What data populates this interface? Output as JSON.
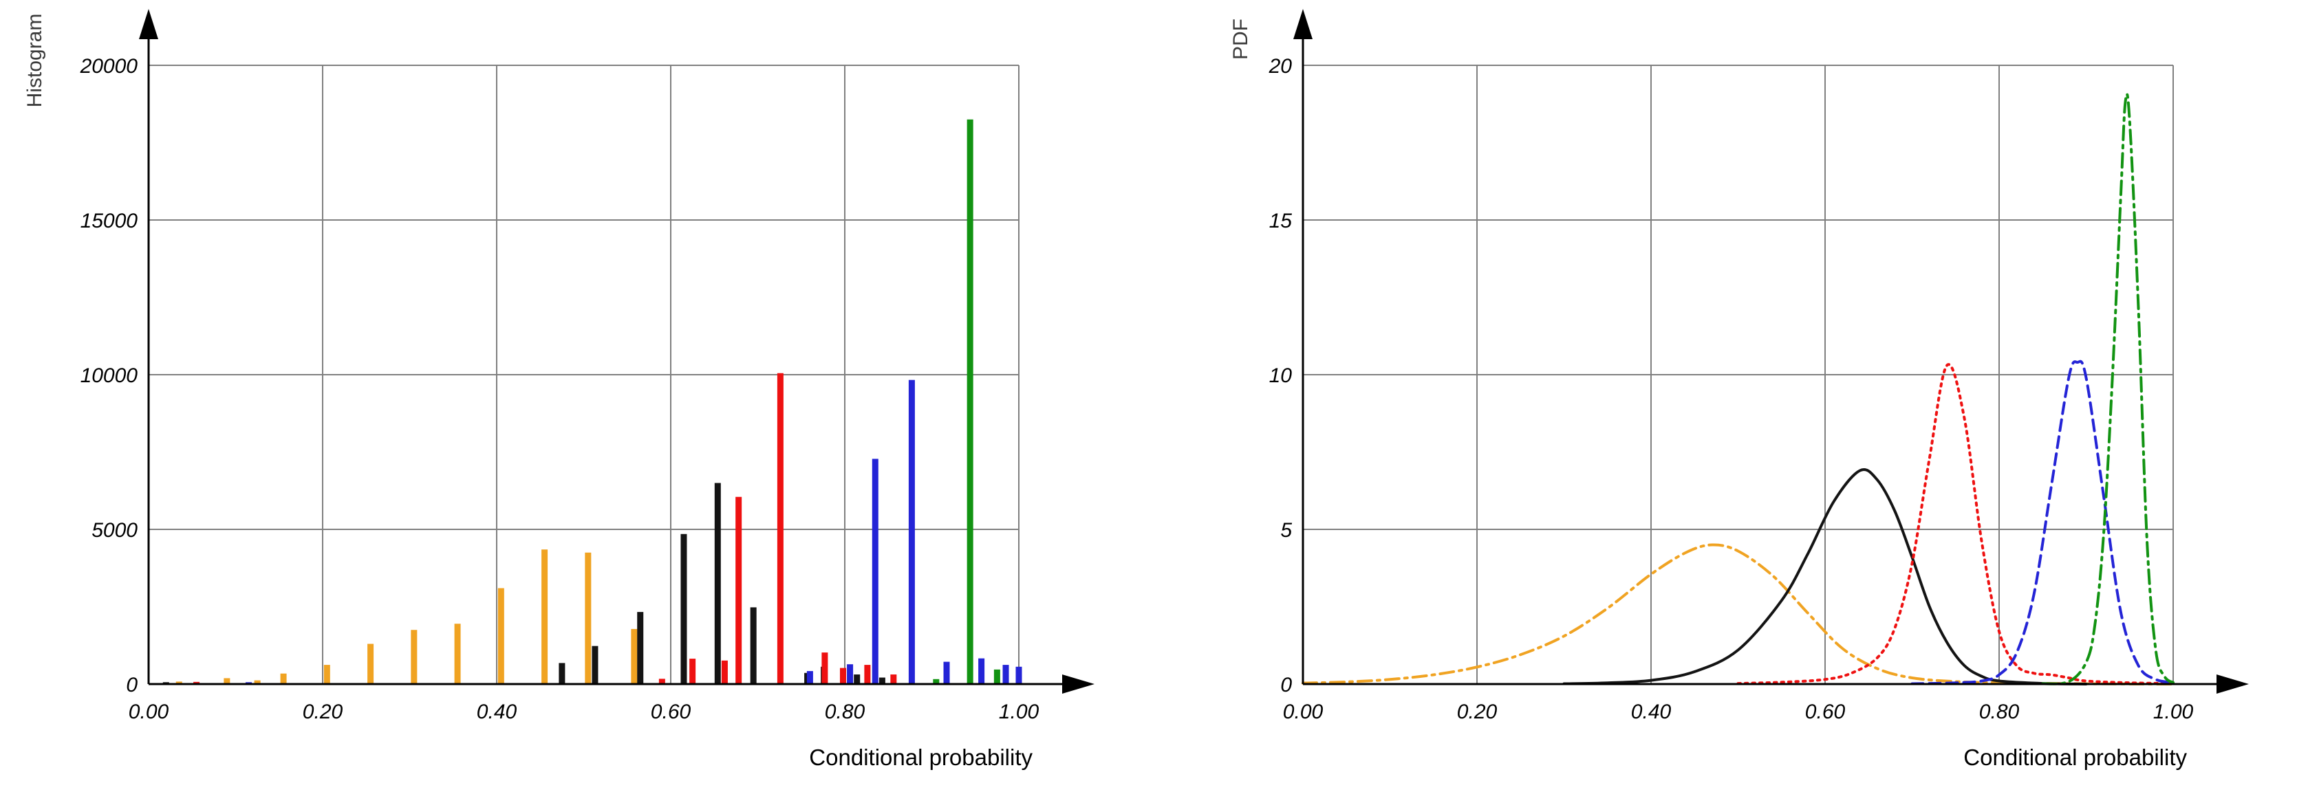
{
  "page": {
    "background": "#ffffff"
  },
  "colors": {
    "grid": "#7f7f7f",
    "axis": "#000000",
    "orange": "#F0A322",
    "black": "#141414",
    "red": "#EE1111",
    "blue": "#2424D6",
    "green": "#129312"
  },
  "chart_data": [
    {
      "id": "histogram",
      "type": "bar",
      "title": "",
      "xlabel": "Conditional probability",
      "ylabel": "Histogram",
      "xlim": [
        0,
        1
      ],
      "ylim": [
        0,
        20000
      ],
      "grid": true,
      "x_ticks": {
        "values": [
          0,
          0.2,
          0.4,
          0.6,
          0.8,
          1.0
        ],
        "labels": [
          "0.00",
          "0.20",
          "0.40",
          "0.60",
          "0.80",
          "1.00"
        ]
      },
      "y_ticks": {
        "values": [
          0,
          5000,
          10000,
          15000,
          20000
        ],
        "labels": [
          "0",
          "5000",
          "10000",
          "15000",
          "20000"
        ]
      },
      "series": [
        {
          "name": "orange",
          "color": "#F0A322",
          "bars": [
            [
              0.035,
              80
            ],
            [
              0.09,
              190
            ],
            [
              0.125,
              120
            ],
            [
              0.155,
              340
            ],
            [
              0.205,
              620
            ],
            [
              0.255,
              1300
            ],
            [
              0.305,
              1750
            ],
            [
              0.355,
              1950
            ],
            [
              0.405,
              3100
            ],
            [
              0.455,
              4350
            ],
            [
              0.505,
              4250
            ],
            [
              0.558,
              1780
            ]
          ]
        },
        {
          "name": "black",
          "color": "#141414",
          "bars": [
            [
              0.02,
              60
            ],
            [
              0.475,
              680
            ],
            [
              0.513,
              1230
            ],
            [
              0.565,
              2330
            ],
            [
              0.615,
              4850
            ],
            [
              0.654,
              6500
            ],
            [
              0.695,
              2480
            ],
            [
              0.757,
              360
            ],
            [
              0.776,
              560
            ],
            [
              0.814,
              310
            ],
            [
              0.843,
              210
            ]
          ]
        },
        {
          "name": "red",
          "color": "#EE1111",
          "bars": [
            [
              0.055,
              70
            ],
            [
              0.59,
              170
            ],
            [
              0.625,
              820
            ],
            [
              0.662,
              760
            ],
            [
              0.678,
              6050
            ],
            [
              0.726,
              10050
            ],
            [
              0.777,
              1020
            ],
            [
              0.798,
              520
            ],
            [
              0.826,
              620
            ],
            [
              0.856,
              310
            ]
          ]
        },
        {
          "name": "blue",
          "color": "#2424D6",
          "bars": [
            [
              0.115,
              60
            ],
            [
              0.76,
              420
            ],
            [
              0.806,
              640
            ],
            [
              0.835,
              7280
            ],
            [
              0.877,
              9830
            ],
            [
              0.917,
              720
            ],
            [
              0.957,
              830
            ],
            [
              0.985,
              620
            ],
            [
              1.0,
              560
            ]
          ]
        },
        {
          "name": "green",
          "color": "#129312",
          "bars": [
            [
              0.905,
              160
            ],
            [
              0.944,
              18250
            ],
            [
              0.975,
              470
            ]
          ]
        }
      ]
    },
    {
      "id": "pdf",
      "type": "line",
      "title": "",
      "xlabel": "Conditional probability",
      "ylabel": "PDF",
      "xlim": [
        0,
        1
      ],
      "ylim": [
        0,
        20
      ],
      "grid": true,
      "x_ticks": {
        "values": [
          0,
          0.2,
          0.4,
          0.6,
          0.8,
          1.0
        ],
        "labels": [
          "0.00",
          "0.20",
          "0.40",
          "0.60",
          "0.80",
          "1.00"
        ]
      },
      "y_ticks": {
        "values": [
          0,
          5,
          10,
          15,
          20
        ],
        "labels": [
          "0",
          "5",
          "10",
          "15",
          "20"
        ]
      },
      "series": [
        {
          "name": "orange",
          "color": "#F0A322",
          "line_style": "dashdot",
          "peak": [
            0.47,
            4.5
          ],
          "points": [
            [
              0.0,
              0.03
            ],
            [
              0.05,
              0.07
            ],
            [
              0.1,
              0.15
            ],
            [
              0.15,
              0.3
            ],
            [
              0.2,
              0.55
            ],
            [
              0.25,
              0.95
            ],
            [
              0.3,
              1.55
            ],
            [
              0.35,
              2.45
            ],
            [
              0.4,
              3.55
            ],
            [
              0.44,
              4.25
            ],
            [
              0.47,
              4.5
            ],
            [
              0.5,
              4.3
            ],
            [
              0.54,
              3.5
            ],
            [
              0.58,
              2.3
            ],
            [
              0.62,
              1.15
            ],
            [
              0.66,
              0.5
            ],
            [
              0.7,
              0.2
            ],
            [
              0.75,
              0.08
            ],
            [
              0.8,
              0.04
            ],
            [
              0.9,
              0.01
            ],
            [
              1.0,
              0.0
            ]
          ]
        },
        {
          "name": "black",
          "color": "#141414",
          "line_style": "solid",
          "peak": [
            0.64,
            6.9
          ],
          "points": [
            [
              0.3,
              0.01
            ],
            [
              0.35,
              0.04
            ],
            [
              0.4,
              0.12
            ],
            [
              0.45,
              0.4
            ],
            [
              0.5,
              1.1
            ],
            [
              0.55,
              2.7
            ],
            [
              0.58,
              4.2
            ],
            [
              0.61,
              5.9
            ],
            [
              0.64,
              6.9
            ],
            [
              0.66,
              6.6
            ],
            [
              0.68,
              5.6
            ],
            [
              0.7,
              4.1
            ],
            [
              0.72,
              2.5
            ],
            [
              0.74,
              1.35
            ],
            [
              0.76,
              0.6
            ],
            [
              0.78,
              0.25
            ],
            [
              0.8,
              0.1
            ],
            [
              0.85,
              0.02
            ],
            [
              0.9,
              0.0
            ]
          ]
        },
        {
          "name": "red",
          "color": "#EE1111",
          "line_style": "dot",
          "peak": [
            0.74,
            10.3
          ],
          "points": [
            [
              0.5,
              0.02
            ],
            [
              0.55,
              0.06
            ],
            [
              0.6,
              0.15
            ],
            [
              0.63,
              0.35
            ],
            [
              0.66,
              0.85
            ],
            [
              0.68,
              1.8
            ],
            [
              0.7,
              3.9
            ],
            [
              0.72,
              7.3
            ],
            [
              0.74,
              10.3
            ],
            [
              0.76,
              8.6
            ],
            [
              0.78,
              4.6
            ],
            [
              0.8,
              1.7
            ],
            [
              0.82,
              0.6
            ],
            [
              0.84,
              0.35
            ],
            [
              0.86,
              0.3
            ],
            [
              0.88,
              0.2
            ],
            [
              0.9,
              0.1
            ],
            [
              0.95,
              0.04
            ],
            [
              1.0,
              0.02
            ]
          ]
        },
        {
          "name": "blue",
          "color": "#2424D6",
          "line_style": "dash",
          "peak": [
            0.89,
            10.4
          ],
          "points": [
            [
              0.7,
              0.01
            ],
            [
              0.75,
              0.04
            ],
            [
              0.78,
              0.1
            ],
            [
              0.8,
              0.3
            ],
            [
              0.82,
              1.0
            ],
            [
              0.84,
              2.9
            ],
            [
              0.86,
              6.4
            ],
            [
              0.88,
              9.9
            ],
            [
              0.89,
              10.4
            ],
            [
              0.9,
              9.9
            ],
            [
              0.92,
              6.1
            ],
            [
              0.94,
              2.3
            ],
            [
              0.96,
              0.6
            ],
            [
              0.98,
              0.15
            ],
            [
              1.0,
              0.05
            ]
          ]
        },
        {
          "name": "green",
          "color": "#129312",
          "line_style": "dashdot",
          "peak": [
            0.945,
            18.8
          ],
          "points": [
            [
              0.85,
              0.01
            ],
            [
              0.88,
              0.08
            ],
            [
              0.9,
              0.7
            ],
            [
              0.91,
              1.9
            ],
            [
              0.92,
              4.8
            ],
            [
              0.93,
              9.8
            ],
            [
              0.94,
              15.9
            ],
            [
              0.945,
              18.8
            ],
            [
              0.95,
              18.2
            ],
            [
              0.96,
              12.2
            ],
            [
              0.97,
              4.6
            ],
            [
              0.98,
              1.1
            ],
            [
              0.99,
              0.25
            ],
            [
              1.0,
              0.05
            ]
          ]
        }
      ]
    }
  ]
}
